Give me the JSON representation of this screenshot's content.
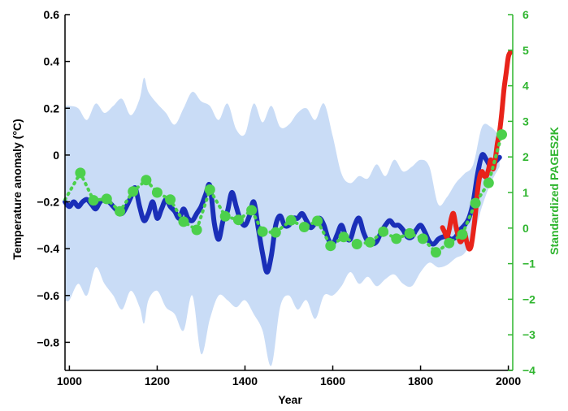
{
  "chart_data": {
    "type": "line",
    "xlabel": "Year",
    "ylabel": "Temperature anomaly (°C)",
    "y2label": "Standardized PAGES2K",
    "xlim": [
      990,
      2010
    ],
    "ylim": [
      -0.92,
      0.6
    ],
    "y2lim": [
      -4,
      6
    ],
    "xticks": [
      "1000",
      "1200",
      "1400",
      "1600",
      "1800",
      "2000"
    ],
    "xtick_values": [
      1000,
      1200,
      1400,
      1600,
      1800,
      2000
    ],
    "yticks": [
      "0.6",
      "0.4",
      "0.2",
      "0",
      "−0.2",
      "−0.4",
      "−0.6",
      "−0.8"
    ],
    "ytick_values": [
      0.6,
      0.4,
      0.2,
      0,
      -0.2,
      -0.4,
      -0.6,
      -0.8
    ],
    "y2ticks": [
      "6",
      "5",
      "4",
      "3",
      "2",
      "1",
      "0",
      "−1",
      "−2",
      "−3",
      "−4"
    ],
    "y2tick_values": [
      6,
      5,
      4,
      3,
      2,
      1,
      0,
      -1,
      -2,
      -3,
      -4
    ],
    "colors": {
      "band": "#c9dcf6",
      "reconstruction": "#1a2fb8",
      "instrumental": "#e8231a",
      "pages2k": "#4cd04c",
      "right_axis": "#2fb52f"
    },
    "series": [
      {
        "role": "uncertainty-band",
        "x": [
          990,
          1000,
          1020,
          1040,
          1060,
          1080,
          1100,
          1120,
          1140,
          1160,
          1170,
          1180,
          1200,
          1220,
          1240,
          1260,
          1280,
          1300,
          1320,
          1340,
          1360,
          1380,
          1400,
          1420,
          1440,
          1460,
          1480,
          1500,
          1520,
          1540,
          1560,
          1580,
          1600,
          1620,
          1640,
          1660,
          1680,
          1700,
          1720,
          1740,
          1760,
          1780,
          1800,
          1820,
          1840,
          1860,
          1880,
          1900,
          1920,
          1940,
          1960,
          1980
        ],
        "upper": [
          0.21,
          0.21,
          0.2,
          0.15,
          0.22,
          0.18,
          0.21,
          0.24,
          0.17,
          0.24,
          0.33,
          0.27,
          0.22,
          0.18,
          0.13,
          0.2,
          0.27,
          0.23,
          0.21,
          0.15,
          0.22,
          0.11,
          0.09,
          0.22,
          0.14,
          0.21,
          0.12,
          0.13,
          0.18,
          0.2,
          0.15,
          0.22,
          0.08,
          -0.08,
          -0.12,
          -0.09,
          -0.1,
          -0.04,
          -0.09,
          -0.02,
          -0.07,
          -0.05,
          -0.02,
          -0.05,
          -0.21,
          -0.18,
          -0.12,
          -0.08,
          -0.04,
          0.12,
          0.12,
          0.08
        ],
        "lower": [
          -0.62,
          -0.62,
          -0.55,
          -0.6,
          -0.48,
          -0.55,
          -0.6,
          -0.66,
          -0.58,
          -0.65,
          -0.72,
          -0.62,
          -0.58,
          -0.65,
          -0.68,
          -0.75,
          -0.6,
          -0.85,
          -0.7,
          -0.6,
          -0.62,
          -0.65,
          -0.62,
          -0.68,
          -0.75,
          -0.9,
          -0.65,
          -0.6,
          -0.66,
          -0.62,
          -0.7,
          -0.6,
          -0.6,
          -0.56,
          -0.5,
          -0.55,
          -0.52,
          -0.56,
          -0.53,
          -0.51,
          -0.55,
          -0.56,
          -0.5,
          -0.46,
          -0.48,
          -0.47,
          -0.44,
          -0.42,
          -0.35,
          -0.22,
          -0.12,
          -0.05
        ]
      },
      {
        "role": "reconstruction",
        "x": [
          990,
          1000,
          1010,
          1020,
          1030,
          1040,
          1050,
          1060,
          1070,
          1080,
          1090,
          1100,
          1110,
          1120,
          1130,
          1140,
          1150,
          1160,
          1170,
          1180,
          1190,
          1200,
          1210,
          1220,
          1230,
          1240,
          1250,
          1260,
          1270,
          1280,
          1290,
          1300,
          1310,
          1320,
          1330,
          1340,
          1350,
          1360,
          1370,
          1380,
          1390,
          1400,
          1410,
          1420,
          1430,
          1440,
          1450,
          1460,
          1470,
          1480,
          1490,
          1500,
          1510,
          1520,
          1530,
          1540,
          1550,
          1560,
          1570,
          1580,
          1590,
          1600,
          1610,
          1620,
          1630,
          1640,
          1650,
          1660,
          1670,
          1680,
          1690,
          1700,
          1710,
          1720,
          1730,
          1740,
          1750,
          1760,
          1770,
          1780,
          1790,
          1800,
          1810,
          1820,
          1830,
          1840,
          1850,
          1860,
          1870,
          1880,
          1890,
          1900,
          1910,
          1920,
          1930,
          1940,
          1950,
          1960,
          1970,
          1980
        ],
        "y": [
          -0.2,
          -0.22,
          -0.2,
          -0.22,
          -0.2,
          -0.19,
          -0.21,
          -0.23,
          -0.2,
          -0.19,
          -0.2,
          -0.22,
          -0.24,
          -0.25,
          -0.22,
          -0.18,
          -0.14,
          -0.22,
          -0.28,
          -0.25,
          -0.2,
          -0.27,
          -0.23,
          -0.19,
          -0.22,
          -0.24,
          -0.27,
          -0.23,
          -0.27,
          -0.28,
          -0.25,
          -0.22,
          -0.17,
          -0.13,
          -0.29,
          -0.36,
          -0.28,
          -0.24,
          -0.16,
          -0.22,
          -0.28,
          -0.3,
          -0.26,
          -0.2,
          -0.31,
          -0.42,
          -0.5,
          -0.43,
          -0.3,
          -0.26,
          -0.3,
          -0.3,
          -0.27,
          -0.27,
          -0.25,
          -0.28,
          -0.31,
          -0.29,
          -0.27,
          -0.3,
          -0.36,
          -0.38,
          -0.34,
          -0.3,
          -0.35,
          -0.36,
          -0.3,
          -0.27,
          -0.33,
          -0.37,
          -0.38,
          -0.37,
          -0.33,
          -0.3,
          -0.28,
          -0.3,
          -0.3,
          -0.32,
          -0.35,
          -0.35,
          -0.32,
          -0.3,
          -0.33,
          -0.37,
          -0.38,
          -0.36,
          -0.35,
          -0.35,
          -0.36,
          -0.35,
          -0.32,
          -0.3,
          -0.27,
          -0.2,
          -0.08,
          0.0,
          -0.02,
          -0.05,
          -0.03,
          -0.01
        ]
      },
      {
        "role": "instrumental",
        "x": [
          1850,
          1855,
          1860,
          1865,
          1870,
          1875,
          1880,
          1885,
          1890,
          1895,
          1900,
          1905,
          1910,
          1915,
          1920,
          1925,
          1930,
          1935,
          1940,
          1945,
          1950,
          1955,
          1960,
          1965,
          1970,
          1975,
          1980,
          1985,
          1990,
          1995,
          2000,
          2005
        ],
        "y": [
          -0.31,
          -0.33,
          -0.35,
          -0.32,
          -0.27,
          -0.25,
          -0.3,
          -0.34,
          -0.37,
          -0.36,
          -0.33,
          -0.37,
          -0.4,
          -0.39,
          -0.33,
          -0.25,
          -0.15,
          -0.09,
          -0.07,
          -0.09,
          -0.09,
          -0.06,
          -0.02,
          -0.06,
          -0.02,
          0.05,
          0.1,
          0.18,
          0.28,
          0.35,
          0.42,
          0.44
        ]
      },
      {
        "role": "pages2k",
        "axis": "right",
        "x": [
          990,
          1025,
          1055,
          1085,
          1115,
          1145,
          1175,
          1200,
          1230,
          1260,
          1290,
          1320,
          1355,
          1385,
          1415,
          1440,
          1470,
          1505,
          1535,
          1565,
          1595,
          1625,
          1655,
          1685,
          1715,
          1745,
          1775,
          1805,
          1835,
          1865,
          1895,
          1925,
          1955,
          1985
        ],
        "y": [
          0.8,
          1.55,
          0.78,
          0.82,
          0.47,
          1.03,
          1.35,
          1.0,
          0.8,
          0.18,
          -0.05,
          1.08,
          0.33,
          0.23,
          0.5,
          -0.1,
          -0.12,
          0.22,
          0.03,
          0.2,
          -0.5,
          -0.25,
          -0.45,
          -0.4,
          -0.1,
          -0.3,
          -0.15,
          -0.3,
          -0.68,
          -0.42,
          -0.18,
          0.7,
          1.27,
          2.63
        ]
      }
    ]
  }
}
